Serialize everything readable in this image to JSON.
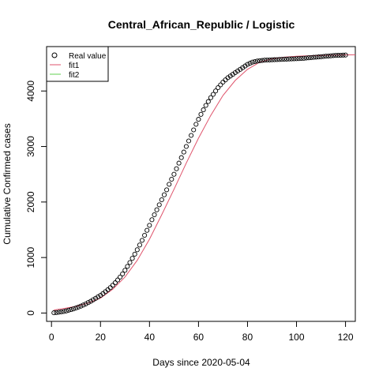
{
  "chart_data": {
    "type": "scatter",
    "title": "Central_African_Republic / Logistic",
    "xlabel": "Days since 2020-05-04",
    "ylabel": "Cumulative Confirmed cases",
    "xlim": [
      -2,
      124
    ],
    "ylim": [
      -150,
      4800
    ],
    "xticks": [
      "0",
      "20",
      "40",
      "60",
      "80",
      "100",
      "120"
    ],
    "yticks": [
      "0",
      "1000",
      "2000",
      "3000",
      "4000"
    ],
    "grid": false,
    "legend": {
      "placement": "top-left",
      "entries": [
        {
          "label": "Real value",
          "symbol": "circle",
          "color": "#000000"
        },
        {
          "label": "fit1",
          "symbol": "line",
          "color": "#DF536B"
        },
        {
          "label": "fit2",
          "symbol": "line",
          "color": "#61D04F"
        }
      ]
    },
    "series": [
      {
        "name": "Real value",
        "style": "points",
        "color": "#000000",
        "x": [
          1,
          2,
          3,
          4,
          5,
          6,
          7,
          8,
          9,
          10,
          11,
          12,
          13,
          14,
          15,
          16,
          17,
          18,
          19,
          20,
          21,
          22,
          23,
          24,
          25,
          26,
          27,
          28,
          29,
          30,
          31,
          32,
          33,
          34,
          35,
          36,
          37,
          38,
          39,
          40,
          41,
          42,
          43,
          44,
          45,
          46,
          47,
          48,
          49,
          50,
          51,
          52,
          53,
          54,
          55,
          56,
          57,
          58,
          59,
          60,
          61,
          62,
          63,
          64,
          65,
          66,
          67,
          68,
          69,
          70,
          71,
          72,
          73,
          74,
          75,
          76,
          77,
          78,
          79,
          80,
          81,
          82,
          83,
          84,
          85,
          86,
          87,
          88,
          89,
          90,
          91,
          92,
          93,
          94,
          95,
          96,
          97,
          98,
          99,
          100,
          101,
          102,
          103,
          104,
          105,
          106,
          107,
          108,
          109,
          110,
          111,
          112,
          113,
          114,
          115,
          116,
          117,
          118,
          119,
          120
        ],
        "y": [
          5,
          10,
          15,
          20,
          28,
          38,
          50,
          62,
          75,
          90,
          108,
          125,
          145,
          165,
          188,
          212,
          238,
          265,
          292,
          320,
          350,
          385,
          420,
          458,
          500,
          545,
          595,
          648,
          705,
          770,
          840,
          910,
          985,
          1060,
          1140,
          1225,
          1310,
          1400,
          1490,
          1580,
          1680,
          1770,
          1860,
          1950,
          2040,
          2130,
          2220,
          2320,
          2410,
          2500,
          2600,
          2700,
          2800,
          2900,
          3000,
          3100,
          3200,
          3300,
          3400,
          3490,
          3580,
          3660,
          3740,
          3810,
          3880,
          3940,
          4000,
          4060,
          4110,
          4160,
          4200,
          4240,
          4270,
          4300,
          4330,
          4360,
          4390,
          4420,
          4450,
          4480,
          4500,
          4520,
          4530,
          4540,
          4545,
          4550,
          4555,
          4558,
          4560,
          4562,
          4564,
          4566,
          4568,
          4570,
          4572,
          4574,
          4576,
          4578,
          4580,
          4582,
          4584,
          4586,
          4590,
          4594,
          4598,
          4602,
          4606,
          4610,
          4614,
          4618,
          4622,
          4626,
          4630,
          4634,
          4638,
          4640,
          4642,
          4644,
          4646,
          4648
        ]
      },
      {
        "name": "fit1",
        "style": "line",
        "color": "#DF536B",
        "x": [
          1,
          5,
          10,
          15,
          20,
          25,
          30,
          35,
          40,
          45,
          50,
          55,
          60,
          65,
          70,
          75,
          80,
          85,
          90,
          95,
          100,
          105,
          110,
          115,
          120,
          124
        ],
        "y": [
          55,
          80,
          120,
          180,
          270,
          430,
          650,
          950,
          1330,
          1770,
          2230,
          2700,
          3150,
          3560,
          3920,
          4190,
          4390,
          4520,
          4580,
          4610,
          4625,
          4635,
          4640,
          4645,
          4650,
          4652
        ]
      },
      {
        "name": "fit2",
        "style": "line",
        "color": "#61D04F",
        "x": [],
        "y": []
      }
    ]
  }
}
